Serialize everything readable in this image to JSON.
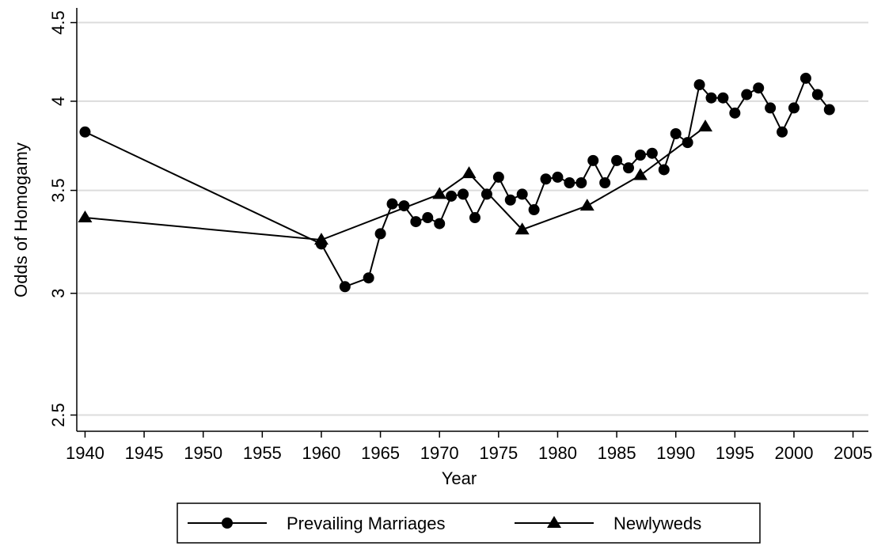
{
  "chart_data": {
    "type": "line",
    "y_label": "Odds of Homogamy",
    "x_label": "Year",
    "yscale": "log",
    "grid": true,
    "xlim": [
      1939.3,
      2006.3
    ],
    "xticks": [
      1940,
      1945,
      1950,
      1955,
      1960,
      1965,
      1970,
      1975,
      1980,
      1985,
      1990,
      1995,
      2000,
      2005
    ],
    "ylim": [
      2.44,
      4.6
    ],
    "yticks": [
      2.5,
      3,
      3.5,
      4,
      4.5
    ],
    "series": [
      {
        "name": "Prevailing Marriages",
        "marker": "circle",
        "color": "#000000",
        "x": [
          1940,
          1960,
          1962,
          1964,
          1965,
          1966,
          1967,
          1968,
          1969,
          1970,
          1971,
          1972,
          1973,
          1974,
          1975,
          1976,
          1977,
          1978,
          1979,
          1980,
          1981,
          1982,
          1983,
          1984,
          1985,
          1986,
          1987,
          1988,
          1989,
          1990,
          1991,
          1992,
          1993,
          1994,
          1995,
          1996,
          1997,
          1998,
          1999,
          2000,
          2001,
          2002,
          2003
        ],
        "values": [
          3.82,
          3.23,
          3.03,
          3.07,
          3.28,
          3.43,
          3.42,
          3.34,
          3.36,
          3.33,
          3.47,
          3.48,
          3.36,
          3.48,
          3.57,
          3.45,
          3.48,
          3.4,
          3.56,
          3.57,
          3.54,
          3.54,
          3.66,
          3.54,
          3.66,
          3.62,
          3.69,
          3.7,
          3.61,
          3.81,
          3.76,
          4.1,
          4.02,
          4.02,
          3.93,
          4.04,
          4.08,
          3.96,
          3.82,
          3.96,
          4.14,
          4.04,
          3.95
        ]
      },
      {
        "name": "Newlyweds",
        "marker": "triangle",
        "color": "#000000",
        "x": [
          1940,
          1960,
          1970,
          1972.5,
          1977,
          1982.5,
          1987,
          1992.5
        ],
        "values": [
          3.36,
          3.25,
          3.48,
          3.59,
          3.3,
          3.42,
          3.58,
          3.85
        ]
      }
    ]
  }
}
